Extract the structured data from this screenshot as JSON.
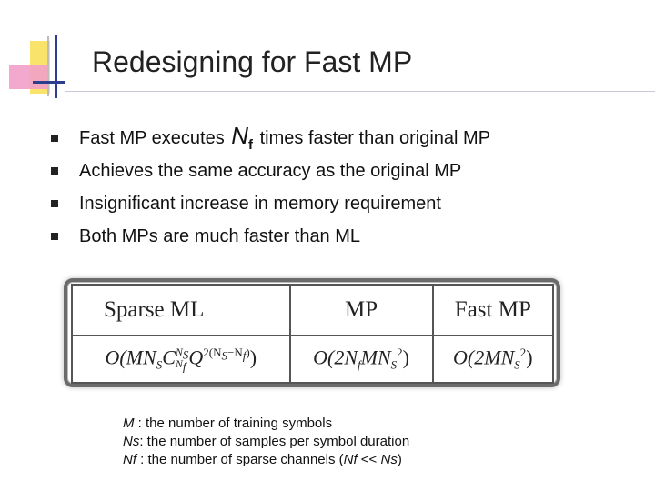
{
  "title": "Redesigning for Fast MP",
  "bullets": {
    "b1_pre": "Fast MP executes",
    "b1_var": "N",
    "b1_sub": "f",
    "b1_post": "times faster than original MP",
    "b2": "Achieves the same accuracy as the original MP",
    "b3": "Insignificant increase in memory requirement",
    "b4": "Both MPs are much faster than ML"
  },
  "table": {
    "headers": [
      "Sparse ML",
      "MP",
      "Fast MP"
    ],
    "sparse_ml": {
      "open": "O(MN",
      "s1": "S",
      "c": "C",
      "c_top": "N",
      "c_top_sub": "S",
      "c_bot": "N",
      "c_bot_sub": "f",
      "q": "Q",
      "q_exp": "2(N",
      "q_exp_s": "S",
      "q_exp_mid": "−N",
      "q_exp_f": "f",
      "q_exp_close": ")",
      "close": ")"
    },
    "mp": {
      "open": "O(2N",
      "f": "f",
      "mid": "MN",
      "s": "S",
      "exp": "2",
      "close": ")"
    },
    "fast_mp": {
      "open": "O(2MN",
      "s": "S",
      "exp": "2",
      "close": ")"
    }
  },
  "legend": {
    "l1_var": "M",
    "l1_text": " : the number of training symbols",
    "l2_var": "Ns",
    "l2_text": ": the number of samples per symbol duration",
    "l3_var": "Nf",
    "l3_text": " : the number of sparse channels (",
    "l3_a": "Nf",
    "l3_mid": " << ",
    "l3_b": "Ns",
    "l3_end": ")"
  }
}
